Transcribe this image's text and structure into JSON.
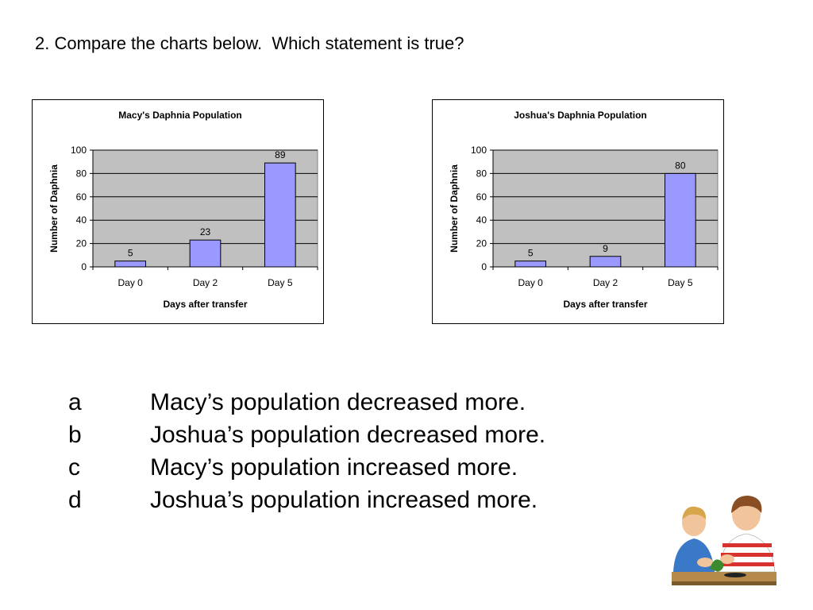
{
  "question": "2. Compare the charts below.  Which statement is true?",
  "answers": [
    {
      "letter": "a",
      "text": "Macy’s population decreased more."
    },
    {
      "letter": "b",
      "text": "Joshua’s population decreased more."
    },
    {
      "letter": "c",
      "text": "Macy’s population increased more."
    },
    {
      "letter": "d",
      "text": "Joshua’s population increased more."
    }
  ],
  "chart_data": [
    {
      "type": "bar",
      "title": "Macy's Daphnia Population",
      "xlabel": "Days after transfer",
      "ylabel": "Number of Daphnia",
      "categories": [
        "Day 0",
        "Day 2",
        "Day 5"
      ],
      "values": [
        5,
        23,
        89
      ],
      "ylim": [
        0,
        100
      ],
      "yticks": [
        0,
        20,
        40,
        60,
        80,
        100
      ],
      "grid": true,
      "bar_color": "#9999ff",
      "plot_background": "#c0c0c0"
    },
    {
      "type": "bar",
      "title": "Joshua's Daphnia Population",
      "xlabel": "Days after transfer",
      "ylabel": "Number of Daphnia",
      "categories": [
        "Day 0",
        "Day 2",
        "Day 5"
      ],
      "values": [
        5,
        9,
        80
      ],
      "ylim": [
        0,
        100
      ],
      "yticks": [
        0,
        20,
        40,
        60,
        80,
        100
      ],
      "grid": true,
      "bar_color": "#9999ff",
      "plot_background": "#c0c0c0"
    }
  ]
}
